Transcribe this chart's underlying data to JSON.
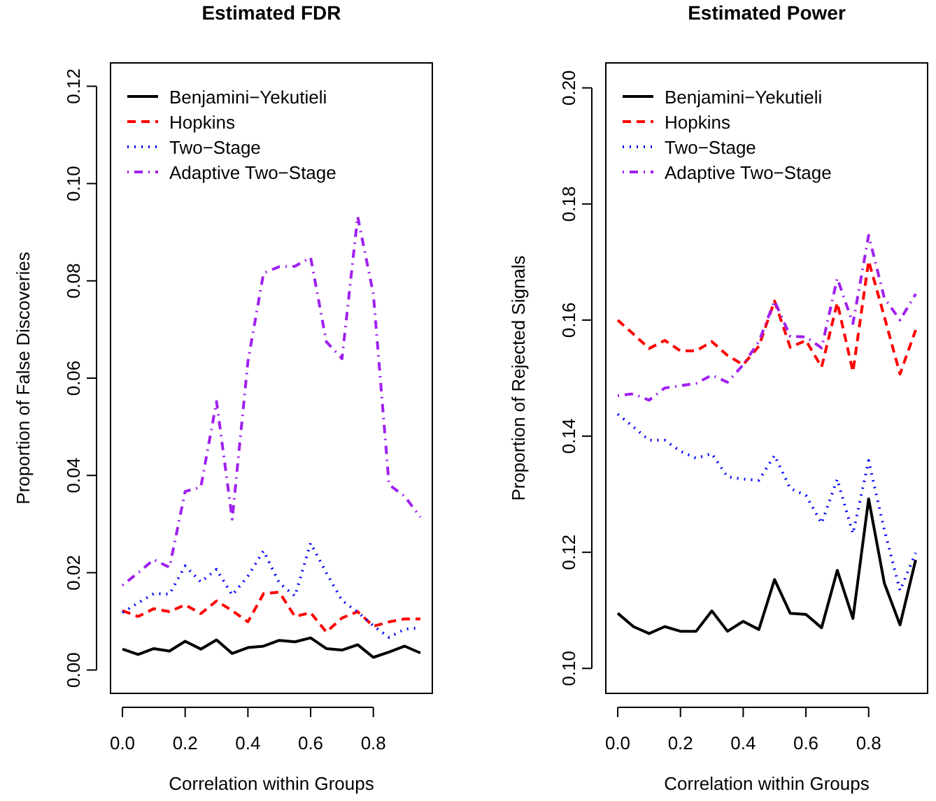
{
  "chart_data": [
    {
      "type": "line",
      "title": "Estimated FDR",
      "xlabel": "Correlation within Groups",
      "ylabel": "Proportion of False Discoveries",
      "x": [
        0,
        0.05,
        0.1,
        0.15,
        0.2,
        0.25,
        0.3,
        0.35,
        0.4,
        0.45,
        0.5,
        0.55,
        0.6,
        0.65,
        0.7,
        0.75,
        0.8,
        0.85,
        0.9,
        0.95
      ],
      "xlim": [
        -0.038,
        0.988
      ],
      "ylim": [
        -0.0048,
        0.1248
      ],
      "xticks": [
        {
          "value": 0,
          "label": "0.0"
        },
        0.2,
        0.4,
        0.6,
        0.8
      ],
      "yticks": [
        {
          "value": 0,
          "label": "0.00"
        },
        0.02,
        0.04,
        0.06,
        0.08,
        {
          "value": 0.1,
          "label": "0.10"
        },
        0.12
      ],
      "grid": false,
      "legend": "top left",
      "series": [
        {
          "name": "Benjamini−Yekutieli",
          "color": "#000000",
          "line_style": "solid",
          "values": [
            0.0043,
            0.0032,
            0.0044,
            0.0039,
            0.0059,
            0.0043,
            0.0062,
            0.0034,
            0.0046,
            0.0049,
            0.0061,
            0.0058,
            0.0066,
            0.0044,
            0.0041,
            0.0052,
            0.0026,
            0.0037,
            0.0049,
            0.0035
          ]
        },
        {
          "name": "Hopkins",
          "color": "#ff0000",
          "line_style": "dashed",
          "values": [
            0.0122,
            0.011,
            0.0126,
            0.012,
            0.0134,
            0.0116,
            0.0142,
            0.0122,
            0.0099,
            0.0157,
            0.016,
            0.011,
            0.0118,
            0.0078,
            0.0107,
            0.012,
            0.009,
            0.0099,
            0.0105,
            0.0105
          ]
        },
        {
          "name": "Two−Stage",
          "color": "#0000ff",
          "line_style": "dotted",
          "values": [
            0.0118,
            0.0138,
            0.0157,
            0.0156,
            0.0214,
            0.0181,
            0.0207,
            0.0154,
            0.0193,
            0.0245,
            0.0179,
            0.0152,
            0.0261,
            0.02,
            0.0143,
            0.0119,
            0.0091,
            0.0067,
            0.0084,
            0.0087
          ]
        },
        {
          "name": "Adaptive Two−Stage",
          "color": "#a020f0",
          "line_style": "dashdot",
          "values": [
            0.0174,
            0.02,
            0.0227,
            0.0211,
            0.0367,
            0.0376,
            0.0552,
            0.031,
            0.0634,
            0.0816,
            0.0829,
            0.083,
            0.0848,
            0.0675,
            0.064,
            0.0932,
            0.0773,
            0.0381,
            0.0357,
            0.0314
          ]
        }
      ]
    },
    {
      "type": "line",
      "title": "Estimated Power",
      "xlabel": "Correlation within Groups",
      "ylabel": "Proportion of Rejected Signals",
      "x": [
        0,
        0.05,
        0.1,
        0.15,
        0.2,
        0.25,
        0.3,
        0.35,
        0.4,
        0.45,
        0.5,
        0.55,
        0.6,
        0.65,
        0.7,
        0.75,
        0.8,
        0.85,
        0.9,
        0.95
      ],
      "xlim": [
        -0.038,
        0.988
      ],
      "ylim": [
        0.0957,
        0.2043
      ],
      "xticks": [
        {
          "value": 0,
          "label": "0.0"
        },
        0.2,
        0.4,
        0.6,
        0.8
      ],
      "yticks": [
        {
          "value": 0.1,
          "label": "0.10"
        },
        0.12,
        0.14,
        0.16,
        0.18,
        {
          "value": 0.2,
          "label": "0.20"
        }
      ],
      "grid": false,
      "legend": "top left",
      "series": [
        {
          "name": "Benjamini−Yekutieli",
          "color": "#000000",
          "line_style": "solid",
          "values": [
            0.1095,
            0.1072,
            0.106,
            0.1072,
            0.1064,
            0.1064,
            0.1099,
            0.1064,
            0.1081,
            0.1067,
            0.1153,
            0.1095,
            0.1093,
            0.107,
            0.1169,
            0.1086,
            0.1292,
            0.1147,
            0.1075,
            0.1187
          ]
        },
        {
          "name": "Hopkins",
          "color": "#ff0000",
          "line_style": "dashed",
          "values": [
            0.16,
            0.1576,
            0.1551,
            0.1565,
            0.1547,
            0.1547,
            0.1563,
            0.1539,
            0.1523,
            0.1555,
            0.1633,
            0.1553,
            0.1565,
            0.1519,
            0.163,
            0.1511,
            0.1702,
            0.1606,
            0.1507,
            0.1583
          ]
        },
        {
          "name": "Two−Stage",
          "color": "#0000ff",
          "line_style": "dotted",
          "values": [
            0.1438,
            0.1416,
            0.1393,
            0.1393,
            0.1374,
            0.1362,
            0.137,
            0.133,
            0.1326,
            0.1324,
            0.1367,
            0.131,
            0.1298,
            0.125,
            0.1326,
            0.1232,
            0.1358,
            0.1239,
            0.1134,
            0.1199
          ]
        },
        {
          "name": "Adaptive Two−Stage",
          "color": "#a020f0",
          "line_style": "dashdot",
          "values": [
            0.147,
            0.1473,
            0.1462,
            0.1483,
            0.1487,
            0.1491,
            0.1505,
            0.1493,
            0.1523,
            0.1563,
            0.1633,
            0.1572,
            0.1571,
            0.1552,
            0.1672,
            0.1594,
            0.1746,
            0.1638,
            0.16,
            0.1645
          ]
        }
      ]
    }
  ]
}
